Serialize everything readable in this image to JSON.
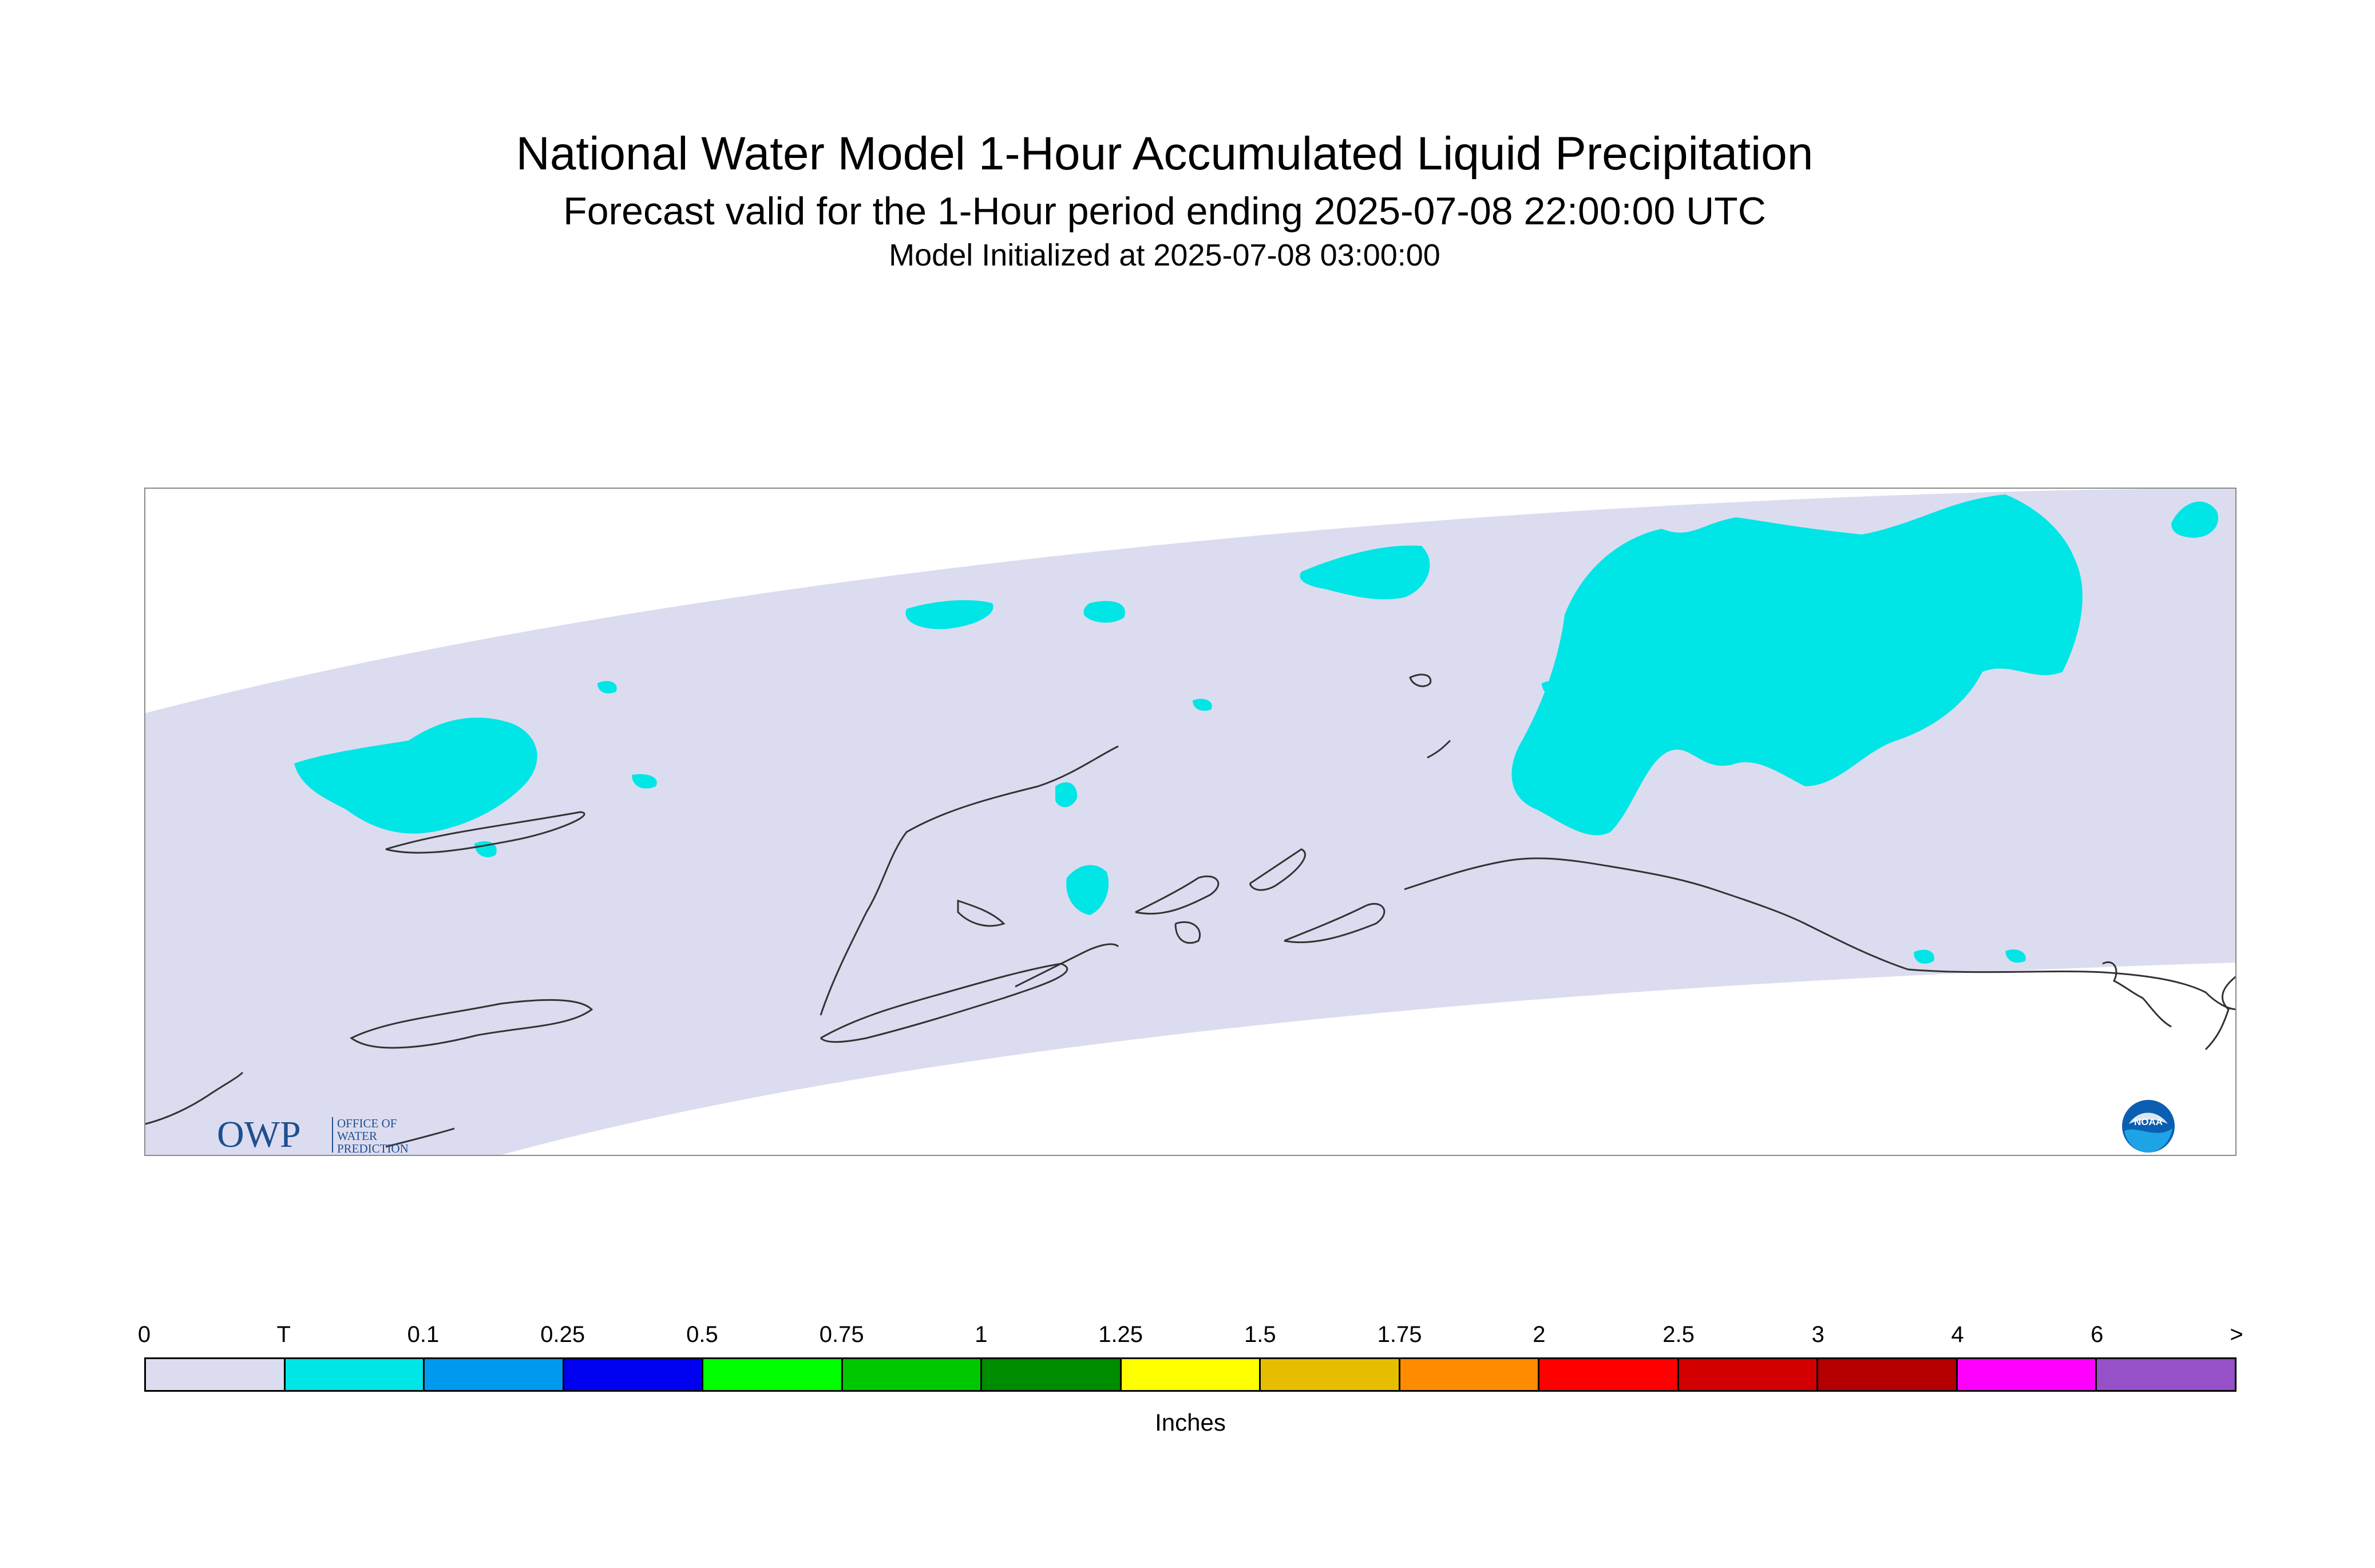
{
  "header": {
    "title": "National Water Model 1-Hour Accumulated Liquid Precipitation",
    "subtitle": "Forecast valid for the 1-Hour period ending 2025-07-08 22:00:00 UTC",
    "init_line": "Model Initialized at 2025-07-08 03:00:00"
  },
  "map": {
    "background_color": "#ffffff",
    "domain_color": "#dcdcf0",
    "precip_color": "#00e5e5",
    "coastline_color": "#333333",
    "logos": {
      "owp": {
        "mark": "OWP",
        "line1": "OFFICE OF",
        "line2": "WATER",
        "line3": "PREDICTION",
        "color": "#1f4f8f"
      },
      "noaa": {
        "text": "NOAA",
        "icon": "noaa-seal-icon"
      }
    }
  },
  "legend": {
    "labels": [
      "0",
      "T",
      "0.1",
      "0.25",
      "0.5",
      "0.75",
      "1",
      "1.25",
      "1.5",
      "1.75",
      "2",
      "2.5",
      "3",
      "4",
      "6",
      ">"
    ],
    "colors": [
      "#dcdcf0",
      "#00e5e5",
      "#0099f0",
      "#0000f0",
      "#00ff00",
      "#00c800",
      "#008c00",
      "#ffff00",
      "#e6be00",
      "#ff8c00",
      "#ff0000",
      "#d20000",
      "#b40000",
      "#ff00ff",
      "#9650c8"
    ],
    "unit": "Inches"
  }
}
